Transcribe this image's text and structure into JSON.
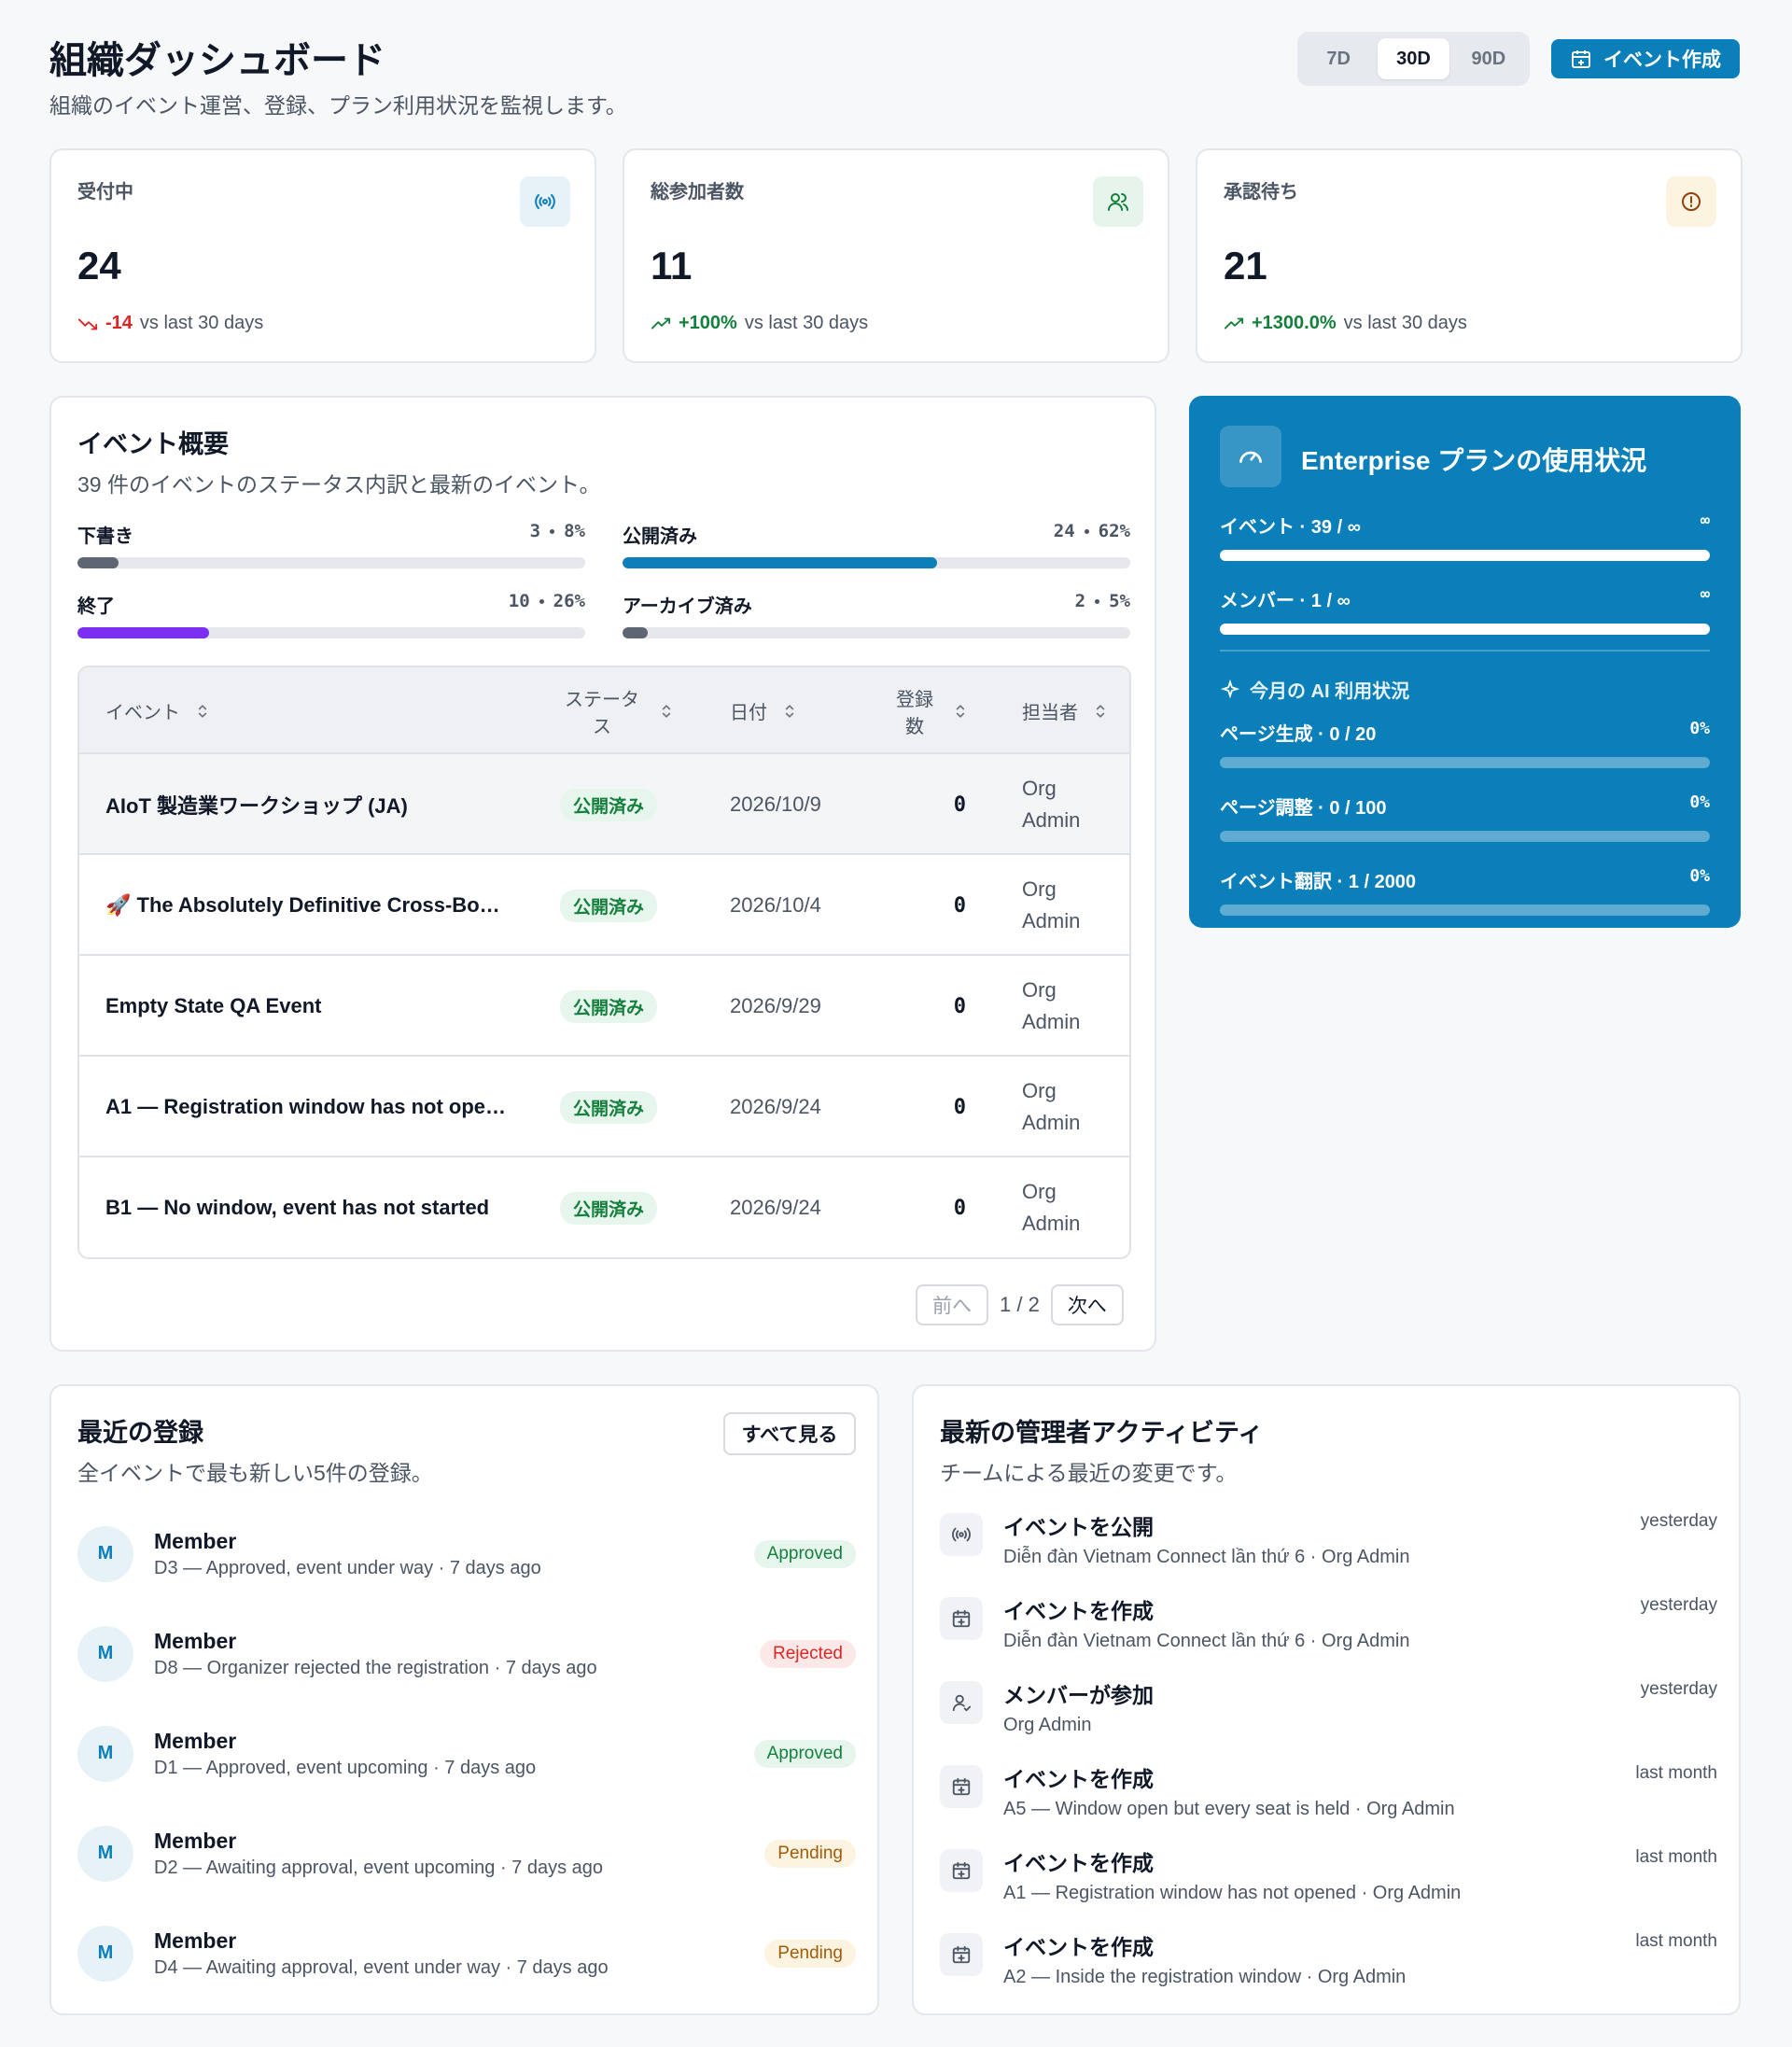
{
  "header": {
    "title": "組織ダッシュボード",
    "subtitle": "組織のイベント運営、登録、プラン利用状況を監視します。",
    "ranges": [
      "7D",
      "30D",
      "90D"
    ],
    "create_button": "イベント作成"
  },
  "kpis": [
    {
      "label": "受付中",
      "value": 24,
      "delta": "-14",
      "comparison": "vs last 30 days"
    },
    {
      "label": "総参加者数",
      "value": 11,
      "delta": "+100%",
      "comparison": "vs last 30 days"
    },
    {
      "label": "承認待ち",
      "value": 21,
      "delta": "+1300.0%",
      "comparison": "vs last 30 days"
    }
  ],
  "overview": {
    "title": "イベント概要",
    "subtitle": "39 件のイベントのステータス内訳と最新のイベント。",
    "statuses": [
      {
        "label": "下書き",
        "count": 3,
        "percent": {
          "value": 8,
          "label": "8%"
        },
        "color": "#5f6673"
      },
      {
        "label": "公開済み",
        "count": 24,
        "percent": {
          "value": 62,
          "label": "62%"
        },
        "color": "#0b7fba"
      },
      {
        "label": "終了",
        "count": 10,
        "percent": {
          "value": 26,
          "label": "26%"
        },
        "color": "#7b2ff0"
      },
      {
        "label": "アーカイブ済み",
        "count": 2,
        "percent": {
          "value": 5,
          "label": "5%"
        },
        "color": "#5f6673"
      }
    ],
    "table": {
      "columns": [
        "イベント",
        "ステータス",
        "日付",
        "登録数",
        "担当者"
      ],
      "rows": [
        [
          "AIoT 製造業ワークショップ (JA)",
          "公開済み",
          "2026/10/9",
          0,
          "Org Admin"
        ],
        [
          "🚀 The Absolutely Definitive Cross-Bo…",
          "公開済み",
          "2026/10/4",
          0,
          "Org Admin"
        ],
        [
          "Empty State QA Event",
          "公開済み",
          "2026/9/29",
          0,
          "Org Admin"
        ],
        [
          "A1 — Registration window has not ope…",
          "公開済み",
          "2026/9/24",
          0,
          "Org Admin"
        ],
        [
          "B1 — No window, event has not started",
          "公開済み",
          "2026/9/24",
          0,
          "Org Admin"
        ]
      ]
    },
    "pager": {
      "prev": "前へ",
      "page": "1 / 2",
      "next": "次へ"
    }
  },
  "plan": {
    "title": "Enterprise プランの使用状況",
    "limits": [
      {
        "label": "イベント · 39 / ∞",
        "limit": "∞"
      },
      {
        "label": "メンバー · 1 / ∞",
        "limit": "∞"
      }
    ],
    "ai_title": "今月の AI 利用状況",
    "ai": [
      {
        "label": "ページ生成 · 0 / 20",
        "percent": {
          "value": 0,
          "label": "0%"
        }
      },
      {
        "label": "ページ調整 · 0 / 100",
        "percent": {
          "value": 0,
          "label": "0%"
        }
      },
      {
        "label": "イベント翻訳 · 1 / 2000",
        "percent": {
          "value": 0,
          "label": "0%"
        }
      }
    ]
  },
  "registrations": {
    "title": "最近の登録",
    "subtitle": "全イベントで最も新しい5件の登録。",
    "see_all": "すべて見る",
    "items": [
      {
        "avatar": "M",
        "name": "Member",
        "detail": "D3 — Approved, event under way · 7 days ago",
        "status": "Approved"
      },
      {
        "avatar": "M",
        "name": "Member",
        "detail": "D8 — Organizer rejected the registration · 7 days ago",
        "status": "Rejected"
      },
      {
        "avatar": "M",
        "name": "Member",
        "detail": "D1 — Approved, event upcoming · 7 days ago",
        "status": "Approved"
      },
      {
        "avatar": "M",
        "name": "Member",
        "detail": "D2 — Awaiting approval, event upcoming · 7 days ago",
        "status": "Pending"
      },
      {
        "avatar": "M",
        "name": "Member",
        "detail": "D4 — Awaiting approval, event under way · 7 days ago",
        "status": "Pending"
      }
    ]
  },
  "activity": {
    "title": "最新の管理者アクティビティ",
    "subtitle": "チームによる最近の変更です。",
    "items": [
      {
        "action": "イベントを公開",
        "detail": "Diễn đàn Vietnam Connect lần thứ 6 · Org Admin",
        "time": "yesterday"
      },
      {
        "action": "イベントを作成",
        "detail": "Diễn đàn Vietnam Connect lần thứ 6 · Org Admin",
        "time": "yesterday"
      },
      {
        "action": "メンバーが参加",
        "detail": "Org Admin",
        "time": "yesterday"
      },
      {
        "action": "イベントを作成",
        "detail": "A5 — Window open but every seat is held · Org Admin",
        "time": "last month"
      },
      {
        "action": "イベントを作成",
        "detail": "A1 — Registration window has not opened · Org Admin",
        "time": "last month"
      },
      {
        "action": "イベントを作成",
        "detail": "A2 — Inside the registration window · Org Admin",
        "time": "last month"
      }
    ]
  }
}
